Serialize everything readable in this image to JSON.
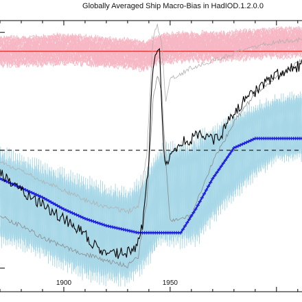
{
  "chart_data": {
    "type": "line",
    "title": "Globally Averaged Ship Macro-Bias in HadIOD.1.2.0.0",
    "xlabel": "",
    "ylabel": "",
    "xlim": [
      1870,
      2012
    ],
    "ylim": [
      -0.6,
      0.55
    ],
    "x_ticks": [
      1900,
      1950
    ],
    "x_tick_labels": [
      "1900",
      "1950"
    ],
    "y_ticks": [
      -0.5,
      0.0,
      0.5
    ],
    "grid": false,
    "legend": "none",
    "reference_lines": [
      {
        "y": 0.42,
        "style": "solid",
        "color": "#e03030"
      },
      {
        "y": 0.0,
        "style": "dashed",
        "color": "#111111"
      }
    ],
    "series": [
      {
        "role": "pink-ensemble-band",
        "color": "#f7b7c4",
        "x": [
          1870,
          1885,
          1900,
          1915,
          1930,
          1938,
          1945,
          1960,
          1975,
          1990,
          2012
        ],
        "center": [
          0.42,
          0.42,
          0.43,
          0.42,
          0.41,
          0.4,
          0.43,
          0.44,
          0.44,
          0.45,
          0.46
        ],
        "half_width": 0.06
      },
      {
        "role": "blue-ensemble-band",
        "color": "#a8d8e8",
        "x": [
          1870,
          1880,
          1890,
          1900,
          1910,
          1920,
          1930,
          1938,
          1945,
          1955,
          1962,
          1970,
          1980,
          1990,
          2000,
          2012
        ],
        "low": [
          -0.42,
          -0.43,
          -0.47,
          -0.52,
          -0.56,
          -0.58,
          -0.58,
          -0.52,
          -0.42,
          -0.42,
          -0.42,
          -0.32,
          -0.22,
          -0.13,
          -0.06,
          -0.05
        ],
        "high": [
          0.03,
          -0.01,
          -0.04,
          -0.07,
          -0.1,
          -0.13,
          -0.15,
          -0.09,
          0.03,
          0.05,
          0.08,
          0.12,
          0.17,
          0.21,
          0.24,
          0.26
        ]
      },
      {
        "role": "blue-mean",
        "color": "#2020dd",
        "x": [
          1870,
          1880,
          1890,
          1900,
          1910,
          1920,
          1930,
          1935,
          1940,
          1945,
          1950,
          1955,
          1962,
          1970,
          1980,
          1990,
          2000,
          2012
        ],
        "y": [
          -0.12,
          -0.16,
          -0.2,
          -0.25,
          -0.29,
          -0.32,
          -0.34,
          -0.35,
          -0.35,
          -0.35,
          -0.35,
          -0.35,
          -0.25,
          -0.12,
          0.01,
          0.05,
          0.05,
          0.05
        ]
      },
      {
        "role": "grey-ensemble-line",
        "color": "#8a8a8a",
        "x": [
          1870,
          1880,
          1890,
          1900,
          1910,
          1920,
          1930,
          1935,
          1939,
          1942,
          1944,
          1946,
          1948,
          1950,
          1960,
          1970,
          1980,
          1990,
          2000,
          2012
        ],
        "y": [
          -0.28,
          -0.32,
          -0.37,
          -0.41,
          -0.44,
          -0.47,
          -0.49,
          -0.45,
          -0.22,
          0.22,
          0.32,
          0.25,
          -0.05,
          -0.3,
          -0.28,
          -0.05,
          0.12,
          0.24,
          0.31,
          0.38
        ]
      },
      {
        "role": "grey-ensemble-line",
        "color": "#b0b0b0",
        "x": [
          1870,
          1880,
          1890,
          1900,
          1910,
          1920,
          1930,
          1935,
          1939,
          1942,
          1944,
          1946,
          1948,
          1950,
          1960,
          1970,
          1980,
          1990,
          2000,
          2012
        ],
        "y": [
          -0.05,
          -0.09,
          -0.13,
          -0.17,
          -0.21,
          -0.24,
          -0.26,
          -0.24,
          -0.02,
          0.48,
          0.53,
          0.45,
          0.2,
          0.3,
          0.35,
          0.38,
          0.41,
          0.44,
          0.46,
          0.47
        ]
      },
      {
        "role": "black-central-line",
        "color": "#000000",
        "x": [
          1870,
          1875,
          1880,
          1885,
          1890,
          1895,
          1900,
          1905,
          1910,
          1915,
          1920,
          1925,
          1930,
          1934,
          1937,
          1940,
          1941,
          1942,
          1943,
          1944,
          1945,
          1946,
          1947,
          1948,
          1950,
          1955,
          1960,
          1965,
          1970,
          1975,
          1980,
          1985,
          1990,
          1995,
          2000,
          2005,
          2012
        ],
        "y": [
          -0.1,
          -0.13,
          -0.17,
          -0.2,
          -0.23,
          -0.26,
          -0.29,
          -0.32,
          -0.36,
          -0.41,
          -0.45,
          -0.44,
          -0.43,
          -0.42,
          -0.32,
          -0.05,
          0.2,
          0.37,
          0.38,
          0.4,
          0.41,
          0.2,
          -0.02,
          -0.08,
          -0.03,
          0.03,
          0.05,
          0.07,
          0.04,
          0.08,
          0.16,
          0.21,
          0.25,
          0.29,
          0.32,
          0.34,
          0.36
        ]
      }
    ]
  }
}
